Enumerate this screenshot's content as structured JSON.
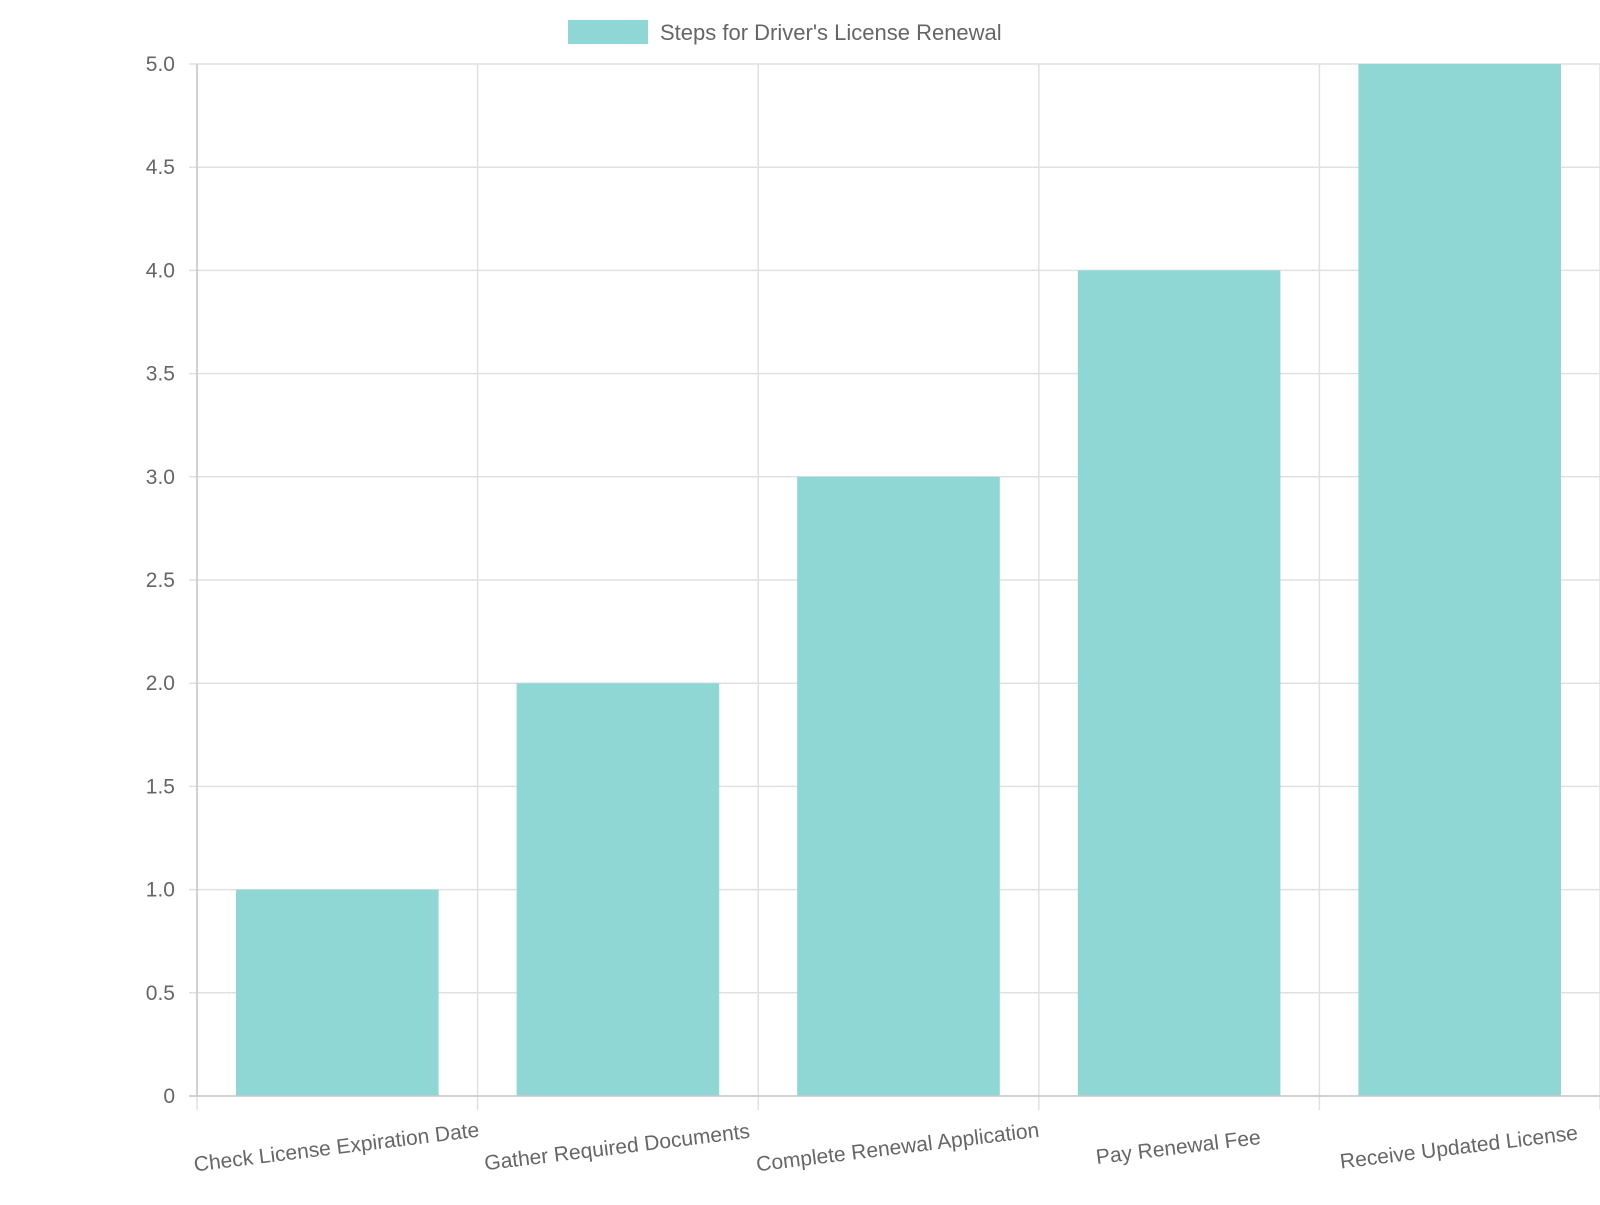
{
  "chart_data": {
    "type": "bar",
    "categories": [
      "Check License Expiration Date",
      "Gather Required Documents",
      "Complete Renewal Application",
      "Pay Renewal Fee",
      "Receive Updated License"
    ],
    "series": [
      {
        "name": "Steps for Driver's License Renewal",
        "values": [
          1,
          2,
          3,
          4,
          5
        ],
        "color": "#8fd7d5"
      }
    ],
    "ylim": [
      0,
      5
    ],
    "yticks": [
      "0",
      "0.5",
      "1.0",
      "1.5",
      "2.0",
      "2.5",
      "3.0",
      "3.5",
      "4.0",
      "4.5",
      "5.0"
    ],
    "title": "",
    "xlabel": "",
    "ylabel": "",
    "grid": true,
    "legend_position": "top-center",
    "colors": {
      "grid": "#e0e0e0",
      "axis": "#c8c8c8",
      "text": "#666666"
    }
  }
}
